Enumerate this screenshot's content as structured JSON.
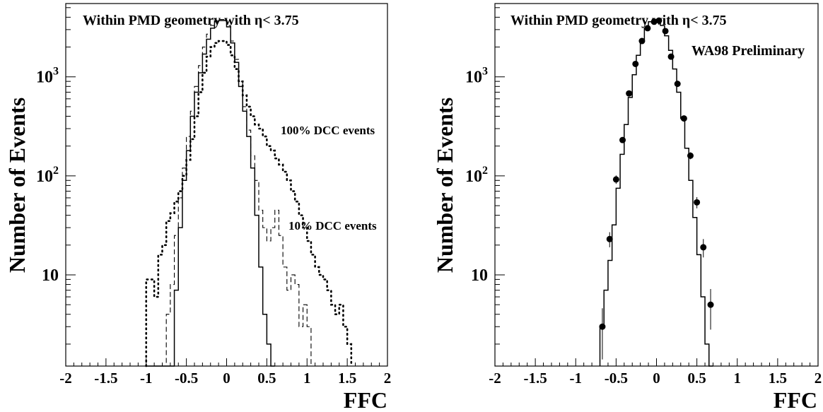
{
  "chart_data": [
    {
      "type": "line",
      "panel": "left",
      "xlabel": "FFC",
      "ylabel": "Number of Events",
      "note": "Within PMD geometry with η<  3.75",
      "xlim": [
        -2,
        2
      ],
      "ylim": [
        1.2,
        5500
      ],
      "yscale": "log",
      "x_ticks": [
        -2,
        -1.5,
        -1,
        -0.5,
        0,
        0.5,
        1,
        1.5,
        2
      ],
      "x_tick_labels": [
        "-2",
        "-1.5",
        "-1",
        "-0.5",
        "0",
        "0.5",
        "1",
        "1.5",
        "2"
      ],
      "y_ticks": [
        10,
        100,
        1000
      ],
      "y_tick_labels": [
        {
          "base": "10",
          "exp": ""
        },
        {
          "base": "10",
          "exp": "2"
        },
        {
          "base": "10",
          "exp": "3"
        }
      ],
      "bin_edges": [
        -1.0,
        -0.95,
        -0.9,
        -0.85,
        -0.8,
        -0.75,
        -0.7,
        -0.65,
        -0.6,
        -0.55,
        -0.5,
        -0.45,
        -0.4,
        -0.35,
        -0.3,
        -0.25,
        -0.2,
        -0.15,
        -0.1,
        -0.05,
        0,
        0.05,
        0.1,
        0.15,
        0.2,
        0.25,
        0.3,
        0.35,
        0.4,
        0.45,
        0.5,
        0.55,
        0.6,
        0.65,
        0.7,
        0.75,
        0.8,
        0.85,
        0.9,
        0.95,
        1.0,
        1.05,
        1.1,
        1.15,
        1.2,
        1.25,
        1.3,
        1.35,
        1.4,
        1.45,
        1.5,
        1.55
      ],
      "series": [
        {
          "name": "",
          "style": "solid",
          "values": [
            0,
            0,
            0,
            0,
            0,
            0,
            0,
            7,
            30,
            90,
            180,
            400,
            700,
            1100,
            1700,
            2400,
            3100,
            3600,
            3700,
            3700,
            3200,
            2200,
            1400,
            800,
            450,
            250,
            120,
            40,
            12,
            4,
            2,
            0
          ]
        },
        {
          "name": "10% DCC events",
          "style": "dashed",
          "values": [
            0,
            0,
            0,
            0,
            0,
            4,
            8,
            25,
            60,
            120,
            250,
            450,
            800,
            1300,
            2000,
            2700,
            3300,
            3700,
            3800,
            3800,
            3300,
            2300,
            1500,
            900,
            500,
            290,
            160,
            90,
            45,
            30,
            22,
            30,
            45,
            25,
            12,
            7,
            10,
            8,
            3,
            5,
            3
          ]
        },
        {
          "name": "100% DCC events",
          "style": "dotted",
          "values": [
            9,
            9,
            6,
            16,
            20,
            35,
            42,
            55,
            70,
            100,
            145,
            235,
            400,
            700,
            1100,
            1600,
            2000,
            2200,
            2300,
            2300,
            2100,
            1650,
            1200,
            900,
            650,
            500,
            400,
            330,
            300,
            250,
            200,
            180,
            150,
            130,
            110,
            90,
            70,
            55,
            40,
            30,
            22,
            16,
            12,
            10,
            9,
            7,
            5,
            4,
            5,
            3,
            2
          ]
        }
      ]
    },
    {
      "type": "line",
      "panel": "right",
      "xlabel": "FFC",
      "ylabel": "Number of Events",
      "note": "Within PMD geometry with η<  3.75",
      "annotation": "WA98 Preliminary",
      "xlim": [
        -2,
        2
      ],
      "ylim": [
        1.2,
        5500
      ],
      "yscale": "log",
      "x_ticks": [
        -2,
        -1.5,
        -1,
        -0.5,
        0,
        0.5,
        1,
        1.5,
        2
      ],
      "x_tick_labels": [
        "-2",
        "-1.5",
        "-1",
        "-0.5",
        "0",
        "0.5",
        "1",
        "1.5",
        "2"
      ],
      "y_ticks": [
        10,
        100,
        1000
      ],
      "y_tick_labels": [
        {
          "base": "10",
          "exp": ""
        },
        {
          "base": "10",
          "exp": "2"
        },
        {
          "base": "10",
          "exp": "3"
        }
      ],
      "bin_edges": [
        -0.7,
        -0.65,
        -0.6,
        -0.55,
        -0.5,
        -0.45,
        -0.4,
        -0.35,
        -0.3,
        -0.25,
        -0.2,
        -0.15,
        -0.1,
        -0.05,
        0,
        0.05,
        0.1,
        0.15,
        0.2,
        0.25,
        0.3,
        0.35,
        0.4,
        0.45,
        0.5,
        0.55,
        0.6,
        0.65,
        0.7
      ],
      "series": [
        {
          "name": "",
          "style": "solid",
          "values": [
            3,
            7,
            14,
            32,
            75,
            165,
            330,
            620,
            1050,
            1650,
            2400,
            3100,
            3600,
            3800,
            3800,
            3300,
            2600,
            1850,
            1200,
            700,
            380,
            190,
            90,
            38,
            16,
            6,
            2,
            0.8
          ]
        },
        {
          "name": "",
          "style": "points",
          "points": [
            {
              "x": -0.67,
              "y": 3,
              "err": 1.6
            },
            {
              "x": -0.58,
              "y": 23,
              "err": 4
            },
            {
              "x": -0.5,
              "y": 92,
              "err": 9
            },
            {
              "x": -0.42,
              "y": 230,
              "err": 15
            },
            {
              "x": -0.34,
              "y": 680,
              "err": 26
            },
            {
              "x": -0.26,
              "y": 1350,
              "err": 37
            },
            {
              "x": -0.18,
              "y": 2300,
              "err": 48
            },
            {
              "x": -0.11,
              "y": 3100,
              "err": 56
            },
            {
              "x": -0.03,
              "y": 3600,
              "err": 60
            },
            {
              "x": 0.03,
              "y": 3700,
              "err": 61
            },
            {
              "x": 0.11,
              "y": 2900,
              "err": 54
            },
            {
              "x": 0.18,
              "y": 1600,
              "err": 40
            },
            {
              "x": 0.26,
              "y": 850,
              "err": 29
            },
            {
              "x": 0.34,
              "y": 380,
              "err": 19
            },
            {
              "x": 0.42,
              "y": 160,
              "err": 13
            },
            {
              "x": 0.5,
              "y": 54,
              "err": 7
            },
            {
              "x": 0.58,
              "y": 19,
              "err": 4
            },
            {
              "x": 0.67,
              "y": 5,
              "err": 2.2
            }
          ]
        }
      ]
    }
  ]
}
